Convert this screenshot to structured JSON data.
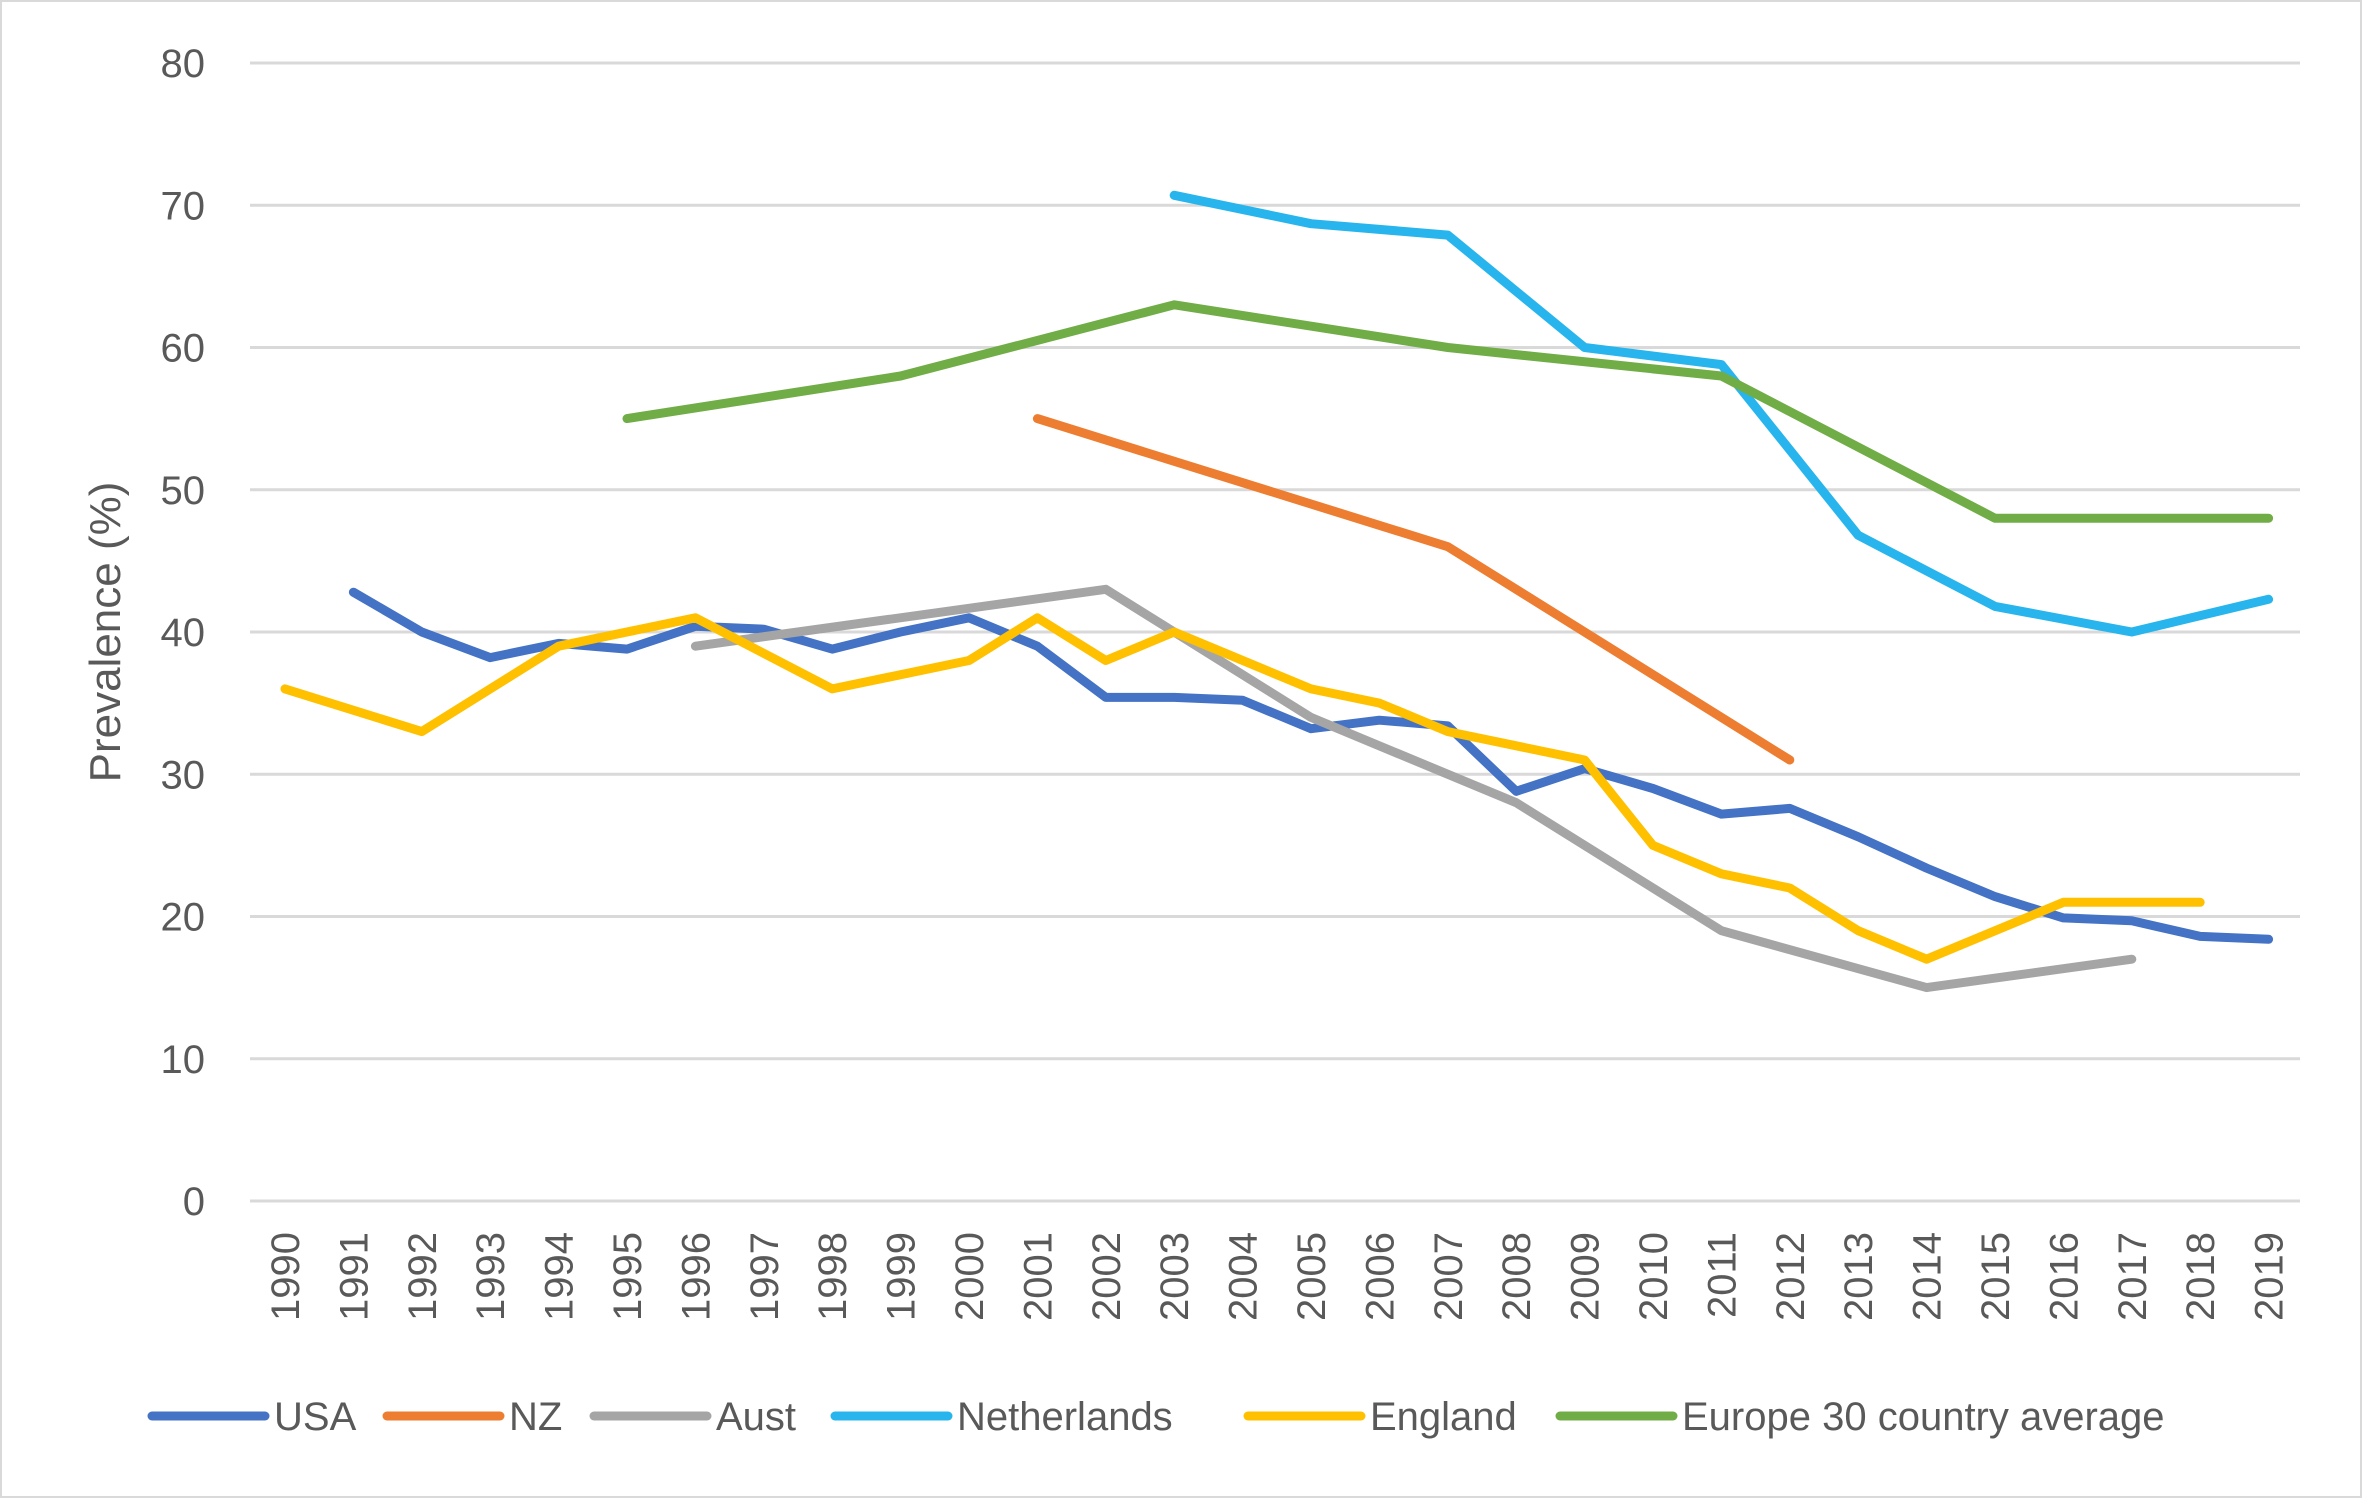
{
  "chart_data": {
    "type": "line",
    "title": "",
    "xlabel": "",
    "ylabel": "Prevalence (%)",
    "ylim": [
      0,
      80
    ],
    "yticks": [
      0,
      10,
      20,
      30,
      40,
      50,
      60,
      70,
      80
    ],
    "grid": true,
    "legend_position": "bottom",
    "x": [
      "1990",
      "1991",
      "1992",
      "1993",
      "1994",
      "1995",
      "1996",
      "1997",
      "1998",
      "1999",
      "2000",
      "2001",
      "2002",
      "2003",
      "2004",
      "2005",
      "2006",
      "2007",
      "2008",
      "2009",
      "2010",
      "2011",
      "2012",
      "2013",
      "2014",
      "2015",
      "2016",
      "2017",
      "2018",
      "2019"
    ],
    "series": [
      {
        "name": "USA",
        "color": "#4472c4",
        "values": [
          null,
          42.8,
          40,
          38.2,
          39.2,
          38.8,
          40.4,
          40.2,
          38.8,
          40,
          41,
          39,
          35.4,
          35.4,
          35.2,
          33.2,
          33.8,
          33.4,
          28.8,
          30.4,
          29,
          27.2,
          27.6,
          25.6,
          23.4,
          21.4,
          19.9,
          19.7,
          18.6,
          18.4
        ]
      },
      {
        "name": "NZ",
        "color": "#ed7d31",
        "values": [
          null,
          null,
          null,
          null,
          null,
          null,
          null,
          null,
          null,
          null,
          null,
          55,
          null,
          null,
          null,
          null,
          null,
          46,
          null,
          null,
          null,
          null,
          31,
          null,
          null,
          null,
          null,
          null,
          null,
          null
        ]
      },
      {
        "name": "Aust",
        "color": "#a5a5a5",
        "values": [
          null,
          null,
          null,
          null,
          null,
          null,
          39,
          null,
          null,
          null,
          null,
          null,
          43,
          null,
          null,
          34,
          null,
          null,
          28,
          null,
          null,
          19,
          null,
          null,
          15,
          null,
          null,
          17,
          null,
          null
        ]
      },
      {
        "name": "Netherlands",
        "color": "#28b4ec",
        "values": [
          null,
          null,
          null,
          null,
          null,
          null,
          null,
          null,
          null,
          null,
          null,
          null,
          null,
          70.7,
          null,
          68.7,
          null,
          67.9,
          null,
          60,
          null,
          58.8,
          null,
          46.8,
          null,
          41.8,
          null,
          40,
          null,
          42.3
        ]
      },
      {
        "name": "England",
        "color": "#ffc000",
        "values": [
          36,
          null,
          33,
          null,
          39,
          null,
          41,
          null,
          36,
          null,
          38,
          41,
          38,
          40,
          null,
          36,
          35,
          33,
          null,
          31,
          25,
          23,
          22,
          19,
          17,
          null,
          21,
          null,
          21,
          null
        ]
      },
      {
        "name": "Europe 30 country average",
        "color": "#70ad47",
        "values": [
          null,
          null,
          null,
          null,
          null,
          55,
          null,
          null,
          null,
          58,
          null,
          null,
          null,
          63,
          null,
          null,
          null,
          60,
          null,
          null,
          null,
          58,
          null,
          null,
          null,
          48,
          null,
          null,
          null,
          48
        ]
      }
    ]
  }
}
